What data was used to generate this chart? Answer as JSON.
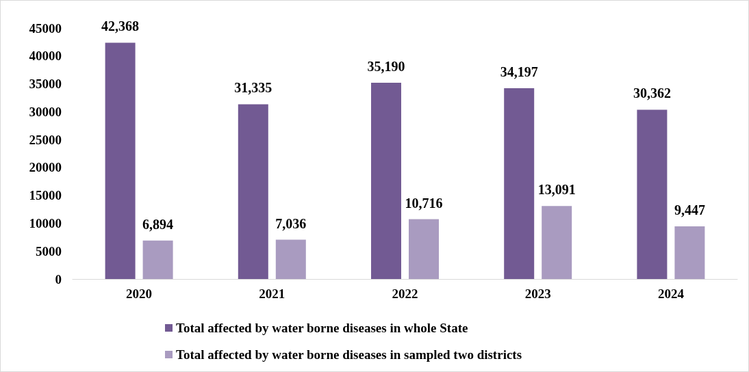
{
  "chart_data": {
    "type": "bar",
    "categories": [
      "2020",
      "2021",
      "2022",
      "2023",
      "2024"
    ],
    "series": [
      {
        "name": "Total affected by water borne diseases in whole State",
        "color": "#725a93",
        "values": [
          42368,
          31335,
          35190,
          34197,
          30362
        ],
        "value_labels": [
          "42,368",
          "31,335",
          "35,190",
          "34,197",
          "30,362"
        ]
      },
      {
        "name": "Total affected by water borne diseases in sampled two districts",
        "color": "#a99bc0",
        "values": [
          6894,
          7036,
          10716,
          13091,
          9447
        ],
        "value_labels": [
          "6,894",
          "7,036",
          "10,716",
          "13,091",
          "9,447"
        ]
      }
    ],
    "ylim": [
      0,
      45000
    ],
    "yticks": [
      0,
      5000,
      10000,
      15000,
      20000,
      25000,
      30000,
      35000,
      40000,
      45000
    ],
    "grid": false,
    "legend": "bottom"
  }
}
